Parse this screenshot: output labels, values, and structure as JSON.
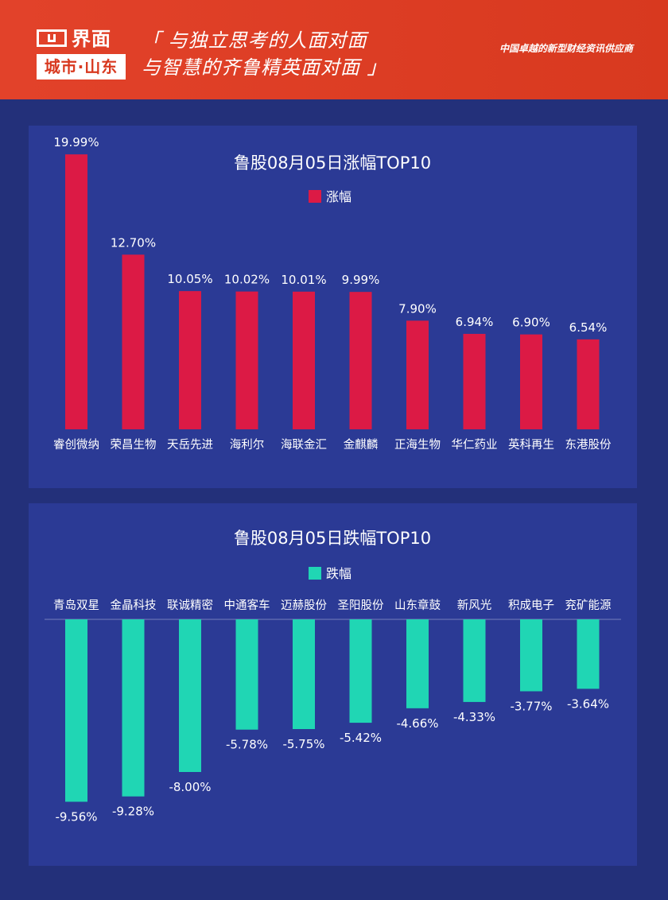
{
  "header": {
    "logo_top": "界面",
    "logo_bottom": "城市·山东",
    "slogan_line1": "「 与独立思考的人面对面",
    "slogan_line2": "与智慧的齐鲁精英面对面 」",
    "tagline": "中国卓越的新型财经资讯供应商"
  },
  "colors": {
    "header_bg": "#d8391f",
    "page_bg": "#23307a",
    "panel_bg": "#2b3a95",
    "up_bar": "#dc1a45",
    "down_bar": "#20d6b4"
  },
  "chart_data": [
    {
      "type": "bar",
      "title": "鲁股08月05日涨幅TOP10",
      "legend": "涨幅",
      "legend_position": "top-center",
      "categories": [
        "睿创微纳",
        "荣昌生物",
        "天岳先进",
        "海利尔",
        "海联金汇",
        "金麒麟",
        "正海生物",
        "华仁药业",
        "英科再生",
        "东港股份"
      ],
      "values": [
        19.99,
        12.7,
        10.05,
        10.02,
        10.01,
        9.99,
        7.9,
        6.94,
        6.9,
        6.54
      ],
      "value_labels": [
        "19.99%",
        "12.70%",
        "10.05%",
        "10.02%",
        "10.01%",
        "9.99%",
        "7.90%",
        "6.94%",
        "6.90%",
        "6.54%"
      ],
      "ylim": [
        0,
        20
      ],
      "grid": false
    },
    {
      "type": "bar",
      "title": "鲁股08月05日跌幅TOP10",
      "legend": "跌幅",
      "legend_position": "top-center",
      "categories": [
        "青岛双星",
        "金晶科技",
        "联诚精密",
        "中通客车",
        "迈赫股份",
        "圣阳股份",
        "山东章鼓",
        "新风光",
        "积成电子",
        "兖矿能源"
      ],
      "values": [
        -9.56,
        -9.28,
        -8.0,
        -5.78,
        -5.75,
        -5.42,
        -4.66,
        -4.33,
        -3.77,
        -3.64
      ],
      "value_labels": [
        "-9.56%",
        "-9.28%",
        "-8.00%",
        "-5.78%",
        "-5.75%",
        "-5.42%",
        "-4.66%",
        "-4.33%",
        "-3.77%",
        "-3.64%"
      ],
      "ylim": [
        -10,
        0
      ],
      "grid": false
    }
  ]
}
